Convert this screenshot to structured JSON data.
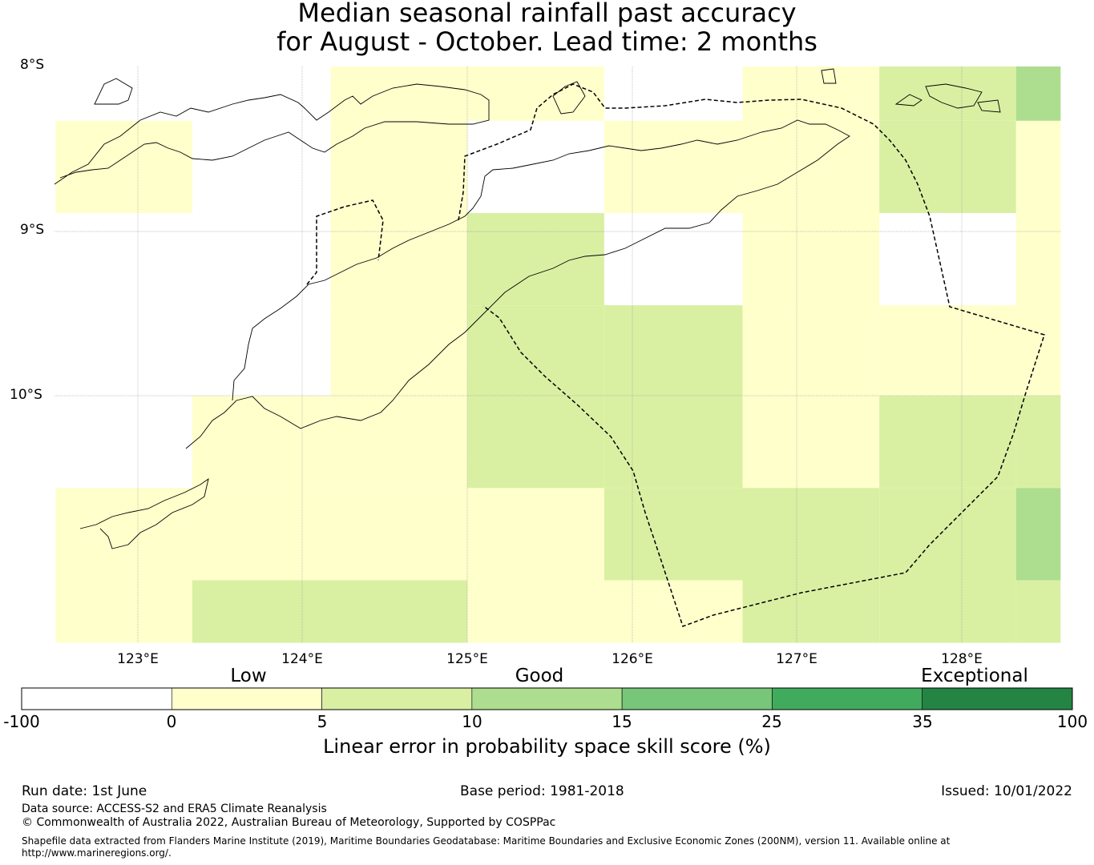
{
  "title": {
    "line1": "Median seasonal rainfall past accuracy",
    "line2": "for August - October. Lead time: 2 months"
  },
  "map": {
    "lon_labels": [
      "123°E",
      "124°E",
      "125°E",
      "126°E",
      "127°E",
      "128°E"
    ],
    "lat_labels": [
      "8°S",
      "9°S",
      "10°S"
    ],
    "grid": {
      "lon_edges": [
        122.5,
        123.33,
        124.17,
        125.0,
        125.83,
        126.67,
        127.5,
        128.33,
        128.6
      ],
      "lat_edges": [
        -8.0,
        -8.33,
        -8.89,
        -9.45,
        -10.0,
        -10.56,
        -11.12,
        -11.5
      ],
      "class_rows": [
        [
          -1,
          -1,
          1,
          1,
          -1,
          1,
          2,
          3
        ],
        [
          1,
          -1,
          1,
          -1,
          1,
          1,
          2,
          1
        ],
        [
          -1,
          -1,
          1,
          2,
          -1,
          1,
          -1,
          1
        ],
        [
          -1,
          -1,
          1,
          2,
          2,
          1,
          1,
          1
        ],
        [
          -1,
          1,
          1,
          2,
          2,
          1,
          2,
          2
        ],
        [
          1,
          1,
          1,
          1,
          2,
          2,
          2,
          3
        ],
        [
          1,
          2,
          2,
          1,
          1,
          2,
          2,
          2
        ]
      ]
    }
  },
  "legend": {
    "category_labels": [
      "Low",
      "Good",
      "Exceptional"
    ],
    "ticks": [
      "-100",
      "0",
      "5",
      "10",
      "15",
      "25",
      "35",
      "100"
    ],
    "colors": [
      "#ffffff",
      "#ffffcc",
      "#d9f0a3",
      "#addd8e",
      "#78c679",
      "#41ab5d",
      "#238443"
    ],
    "title": "Linear error in probability space skill score (%)"
  },
  "footer": {
    "run_date": "Run date: 1st June",
    "base_period": "Base period: 1981-2018",
    "issued": "Issued: 10/01/2022",
    "data_source": "Data source: ACCESS-S2 and ERA5 Climate Reanalysis",
    "copyright": "© Commonwealth of Australia 2022, Australian Bureau of Meteorology, Supported by COSPPac",
    "shapefile": "Shapefile data extracted from Flanders Marine Institute (2019), Maritime Boundaries Geodatabase: Maritime Boundaries and Exclusive Economic Zones (200NM), version 11. Available online at http://www.marineregions.org/."
  }
}
